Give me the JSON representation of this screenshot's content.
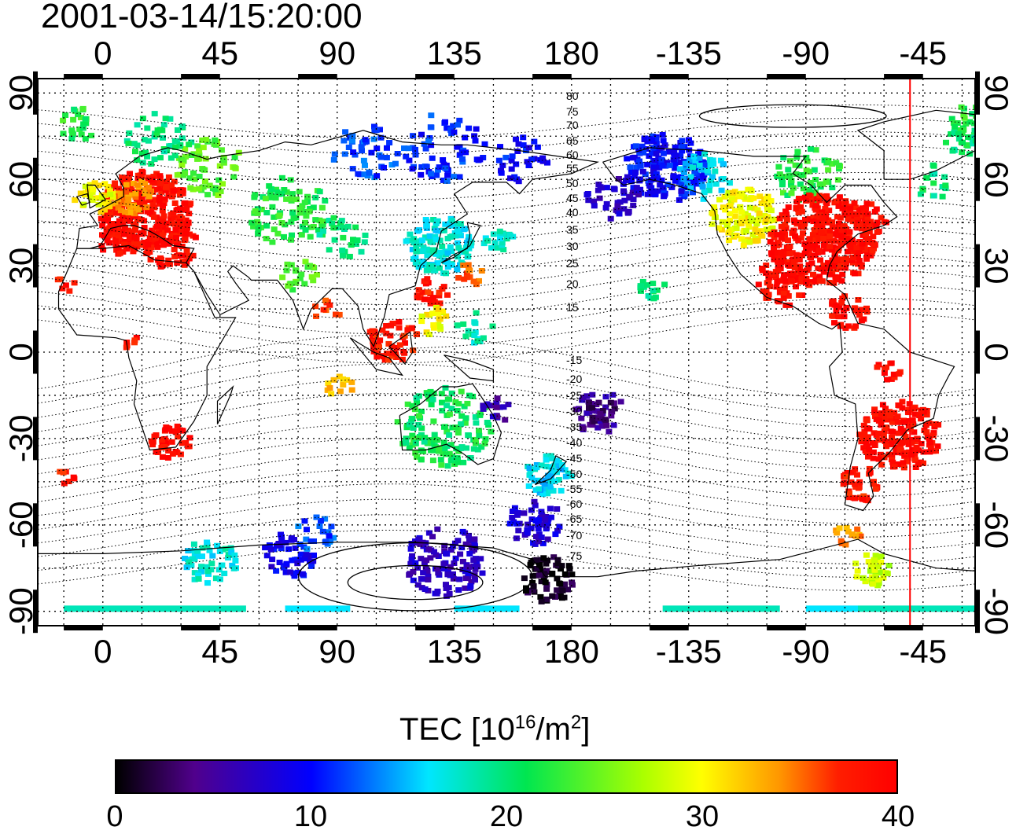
{
  "title": "2001-03-14/15:20:00",
  "axes": {
    "lon_labels": [
      "0",
      "45",
      "90",
      "135",
      "180",
      "-135",
      "-90",
      "-45"
    ],
    "lon_values": [
      0,
      45,
      90,
      135,
      180,
      225,
      270,
      315
    ],
    "lat_labels": [
      "90",
      "60",
      "30",
      "0",
      "-30",
      "-60",
      "-90"
    ],
    "lat_values": [
      90,
      60,
      30,
      0,
      -30,
      -60,
      -90
    ],
    "lon_range": [
      -25,
      335
    ],
    "lat_range": [
      -95,
      95
    ]
  },
  "contour_labels": {
    "north": [
      "80",
      "75",
      "70",
      "65",
      "60",
      "55",
      "50",
      "45",
      "40",
      "35",
      "30",
      "25",
      "20",
      "15"
    ],
    "south": [
      "-15",
      "-20",
      "-25",
      "-30",
      "-35",
      "-40",
      "-45",
      "-50",
      "-55",
      "-60",
      "-65",
      "-70",
      "-75"
    ]
  },
  "colorbar": {
    "title_main": "TEC  [10",
    "title_exp1": "16",
    "title_mid": "/m",
    "title_exp2": "2",
    "title_end": "]",
    "min": 0,
    "max": 40,
    "tick_labels": [
      "0",
      "10",
      "20",
      "30",
      "40"
    ],
    "tick_values": [
      0,
      10,
      20,
      30,
      40
    ]
  },
  "marker_line_lon": 310,
  "colors": {
    "marker_line": "#ff0000",
    "frame": "#000000"
  }
}
